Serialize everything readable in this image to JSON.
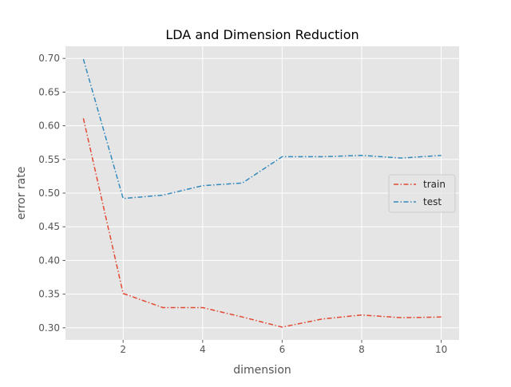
{
  "chart_data": {
    "type": "line",
    "title": "LDA and Dimension Reduction",
    "xlabel": "dimension",
    "ylabel": "error rate",
    "x": [
      1,
      2,
      3,
      4,
      5,
      6,
      7,
      8,
      9,
      10
    ],
    "xlim": [
      0.55,
      10.45
    ],
    "ylim": [
      0.282,
      0.718
    ],
    "x_ticks": [
      2,
      4,
      6,
      8,
      10
    ],
    "y_ticks": [
      0.3,
      0.35,
      0.4,
      0.45,
      0.5,
      0.55,
      0.6,
      0.65,
      0.7
    ],
    "x_tick_labels": [
      "2",
      "4",
      "6",
      "8",
      "10"
    ],
    "y_tick_labels": [
      "0.30",
      "0.35",
      "0.40",
      "0.45",
      "0.50",
      "0.55",
      "0.60",
      "0.65",
      "0.70"
    ],
    "grid": true,
    "legend_position": "center-right",
    "line_style": "dash-dot",
    "background_color": "#e5e5e5",
    "grid_color": "#ffffff",
    "series": [
      {
        "name": "train",
        "color": "#e24a33",
        "values": [
          0.611,
          0.351,
          0.33,
          0.33,
          0.316,
          0.301,
          0.313,
          0.319,
          0.315,
          0.316
        ]
      },
      {
        "name": "test",
        "color": "#348abd",
        "values": [
          0.699,
          0.492,
          0.497,
          0.511,
          0.515,
          0.554,
          0.554,
          0.556,
          0.552,
          0.556
        ]
      }
    ]
  }
}
